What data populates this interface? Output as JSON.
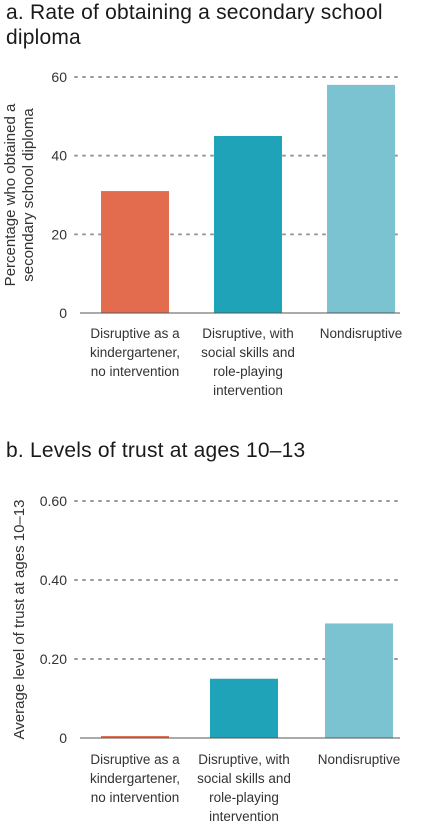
{
  "chart_data": [
    {
      "type": "bar",
      "title": "a. Rate of obtaining a secondary school diploma",
      "ylabel": [
        "Percentage who obtained a",
        "secondary school diploma"
      ],
      "categories": [
        [
          "Disruptive as a",
          "kindergartener,",
          "no intervention"
        ],
        [
          "Disruptive, with",
          "social skills and",
          "role-playing",
          "intervention"
        ],
        [
          "Nondisruptive"
        ]
      ],
      "values": [
        31,
        45,
        58
      ],
      "ylim": [
        0,
        60
      ],
      "yticks": [
        0,
        20,
        40,
        60
      ],
      "ytick_labels": [
        "0",
        "20",
        "40",
        "60"
      ],
      "grid": true,
      "colors": [
        "#e36c4e",
        "#1fa3b8",
        "#7cc3d2"
      ]
    },
    {
      "type": "bar",
      "title": "b. Levels of trust at ages 10–13",
      "ylabel": [
        "Average level of trust at ages 10–13"
      ],
      "categories": [
        [
          "Disruptive as a",
          "kindergartener,",
          "no intervention"
        ],
        [
          "Disruptive, with",
          "social skills and",
          "role-playing",
          "intervention"
        ],
        [
          "Nondisruptive"
        ]
      ],
      "values": [
        0.005,
        0.15,
        0.29
      ],
      "ylim": [
        0,
        0.6
      ],
      "yticks": [
        0,
        0.2,
        0.4,
        0.6
      ],
      "ytick_labels": [
        "0",
        "0.20",
        "0.40",
        "0.60"
      ],
      "grid": true,
      "colors": [
        "#e36c4e",
        "#1fa3b8",
        "#7cc3d2"
      ]
    }
  ]
}
